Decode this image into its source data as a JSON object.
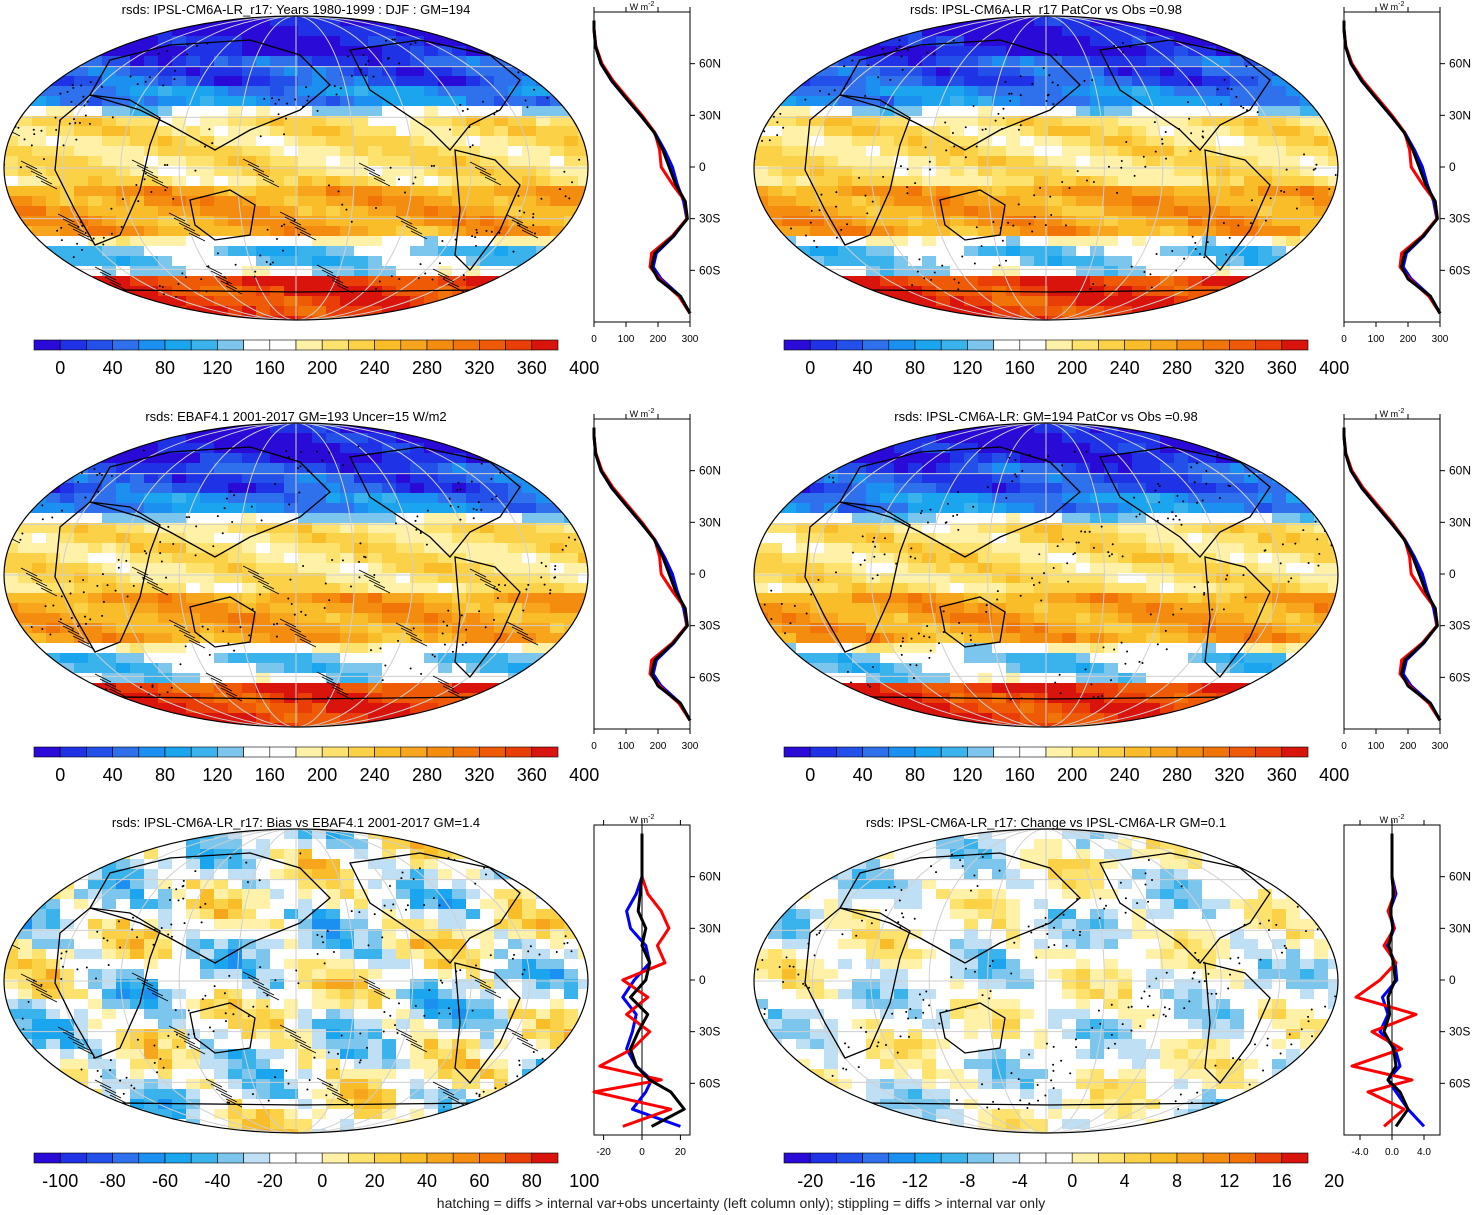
{
  "figure": {
    "footnote": "hatching = diffs > internal var+obs uncertainty (left column only); stippling = diffs > internal var only"
  },
  "colors": {
    "land_outline": "#000000",
    "grid": "#cfcfcf",
    "model_line": "#ff0000",
    "obs_line": "#0000ff",
    "ref_line": "#000000"
  },
  "panels": [
    {
      "id": "p1",
      "title": "rsds: IPSL-CM6A-LR_r17: Years 1980-1999 : DJF : GM=194",
      "field": "mean",
      "colorbar": {
        "ticks": [
          "0",
          "40",
          "80",
          "120",
          "160",
          "200",
          "240",
          "280",
          "320",
          "360",
          "400"
        ]
      },
      "profile": {
        "unit": "W m",
        "unit_sup": "-2",
        "xticks": [
          "0",
          "100",
          "200",
          "300"
        ],
        "xrange": [
          0,
          300
        ]
      }
    },
    {
      "id": "p2",
      "title": "rsds: IPSL-CM6A-LR_r17 PatCor vs Obs =0.98",
      "field": "mean",
      "colorbar": {
        "ticks": [
          "0",
          "40",
          "80",
          "120",
          "160",
          "200",
          "240",
          "280",
          "320",
          "360",
          "400"
        ]
      },
      "profile": {
        "unit": "W m",
        "unit_sup": "-2",
        "xticks": [
          "0",
          "100",
          "200",
          "300"
        ],
        "xrange": [
          0,
          300
        ]
      }
    },
    {
      "id": "p3",
      "title": "rsds: EBAF4.1 2001-2017 GM=193 Uncer=15 W/m2",
      "field": "mean",
      "colorbar": {
        "ticks": [
          "0",
          "40",
          "80",
          "120",
          "160",
          "200",
          "240",
          "280",
          "320",
          "360",
          "400"
        ]
      },
      "profile": {
        "unit": "W m",
        "unit_sup": "-2",
        "xticks": [
          "0",
          "100",
          "200",
          "300"
        ],
        "xrange": [
          0,
          300
        ]
      }
    },
    {
      "id": "p4",
      "title": "rsds: IPSL-CM6A-LR: GM=194 PatCor vs Obs =0.98",
      "field": "mean",
      "colorbar": {
        "ticks": [
          "0",
          "40",
          "80",
          "120",
          "160",
          "200",
          "240",
          "280",
          "320",
          "360",
          "400"
        ]
      },
      "profile": {
        "unit": "W m",
        "unit_sup": "-2",
        "xticks": [
          "0",
          "100",
          "200",
          "300"
        ],
        "xrange": [
          0,
          300
        ]
      }
    },
    {
      "id": "p5",
      "title": "rsds: IPSL-CM6A-LR_r17: Bias vs EBAF4.1 2001-2017 GM=1.4",
      "field": "bias",
      "colorbar": {
        "ticks": [
          "-100",
          "-80",
          "-60",
          "-40",
          "-20",
          "0",
          "20",
          "40",
          "60",
          "80",
          "100"
        ]
      },
      "profile": {
        "unit": "W m",
        "unit_sup": "-2",
        "xticks": [
          "-20",
          "0",
          "20"
        ],
        "xrange": [
          -25,
          25
        ]
      }
    },
    {
      "id": "p6",
      "title": "rsds: IPSL-CM6A-LR_r17: Change vs IPSL-CM6A-LR GM=0.1",
      "field": "change",
      "colorbar": {
        "ticks": [
          "-20",
          "-16",
          "-12",
          "-8",
          "-4",
          "0",
          "4",
          "8",
          "12",
          "16",
          "20"
        ]
      },
      "profile": {
        "unit": "W m",
        "unit_sup": "-2",
        "xticks": [
          "-4.0",
          "0.0",
          "4.0"
        ],
        "xrange": [
          -6,
          6
        ]
      }
    }
  ],
  "chart_data": {
    "type": "heatmap",
    "variable": "rsds",
    "lat_axis": {
      "ticks": [
        "60N",
        "30N",
        "0",
        "30S",
        "60S"
      ],
      "values": [
        60,
        30,
        0,
        -30,
        -60
      ],
      "range": [
        -90,
        90
      ]
    },
    "colorbar_mean": [
      "#2a0ad6",
      "#1f32e6",
      "#2450ea",
      "#2f70ec",
      "#1b90f0",
      "#1aa5ee",
      "#3ab3ec",
      "#7cc6ee",
      "#ffffff",
      "#ffffff",
      "#fff2a8",
      "#fde36e",
      "#fbd148",
      "#f9bd2a",
      "#f7a51c",
      "#f48c10",
      "#f17408",
      "#ee5a06",
      "#ea3e08",
      "#d8140c"
    ],
    "colorbar_diverging": [
      "#2a0ad6",
      "#1f32e6",
      "#2450ea",
      "#2f70ec",
      "#1b90f0",
      "#1aa5ee",
      "#3ab3ec",
      "#7cc6ee",
      "#bfe0f4",
      "#ffffff",
      "#ffffff",
      "#fff2a8",
      "#fde36e",
      "#fbd148",
      "#f9bd2a",
      "#f7a51c",
      "#f48c10",
      "#f17408",
      "#ea3e08",
      "#d8140c"
    ],
    "zonal_profiles_lat": [
      -85,
      -75,
      -65,
      -58,
      -50,
      -40,
      -30,
      -20,
      -10,
      0,
      10,
      20,
      30,
      40,
      50,
      60,
      70,
      80,
      85
    ],
    "zonal_profiles": {
      "mean_djf_vs_obs": {
        "model": [
          300,
          265,
          205,
          175,
          180,
          245,
          290,
          285,
          245,
          210,
          205,
          190,
          150,
          105,
          60,
          25,
          6,
          0,
          0
        ],
        "obs": [
          320,
          270,
          210,
          185,
          195,
          250,
          290,
          280,
          260,
          245,
          220,
          190,
          145,
          100,
          55,
          22,
          5,
          0,
          0
        ],
        "reference": [
          310,
          270,
          200,
          180,
          190,
          248,
          292,
          285,
          255,
          235,
          215,
          188,
          146,
          100,
          56,
          22,
          5,
          0,
          0
        ]
      },
      "bias": {
        "model": [
          -10,
          15,
          -25,
          10,
          -22,
          -5,
          4,
          -8,
          3,
          -10,
          12,
          8,
          14,
          10,
          3,
          0,
          0,
          0,
          0
        ],
        "obs": [
          20,
          -5,
          2,
          5,
          -3,
          -8,
          -5,
          -3,
          -10,
          -4,
          4,
          2,
          -6,
          -8,
          -3,
          0,
          0,
          0,
          0
        ],
        "reference": [
          5,
          22,
          15,
          4,
          -3,
          -6,
          -2,
          3,
          -6,
          2,
          4,
          0,
          2,
          -2,
          -1,
          0,
          0,
          0,
          0
        ]
      },
      "change": {
        "model": [
          -1,
          1.5,
          -3,
          2.5,
          -5,
          1.2,
          -2.5,
          3,
          -4.5,
          -1.5,
          0.5,
          -1,
          0.3,
          -0.5,
          0.3,
          0,
          0,
          0,
          0
        ],
        "obs": [
          4,
          2,
          0.5,
          -0.5,
          1,
          0.4,
          -1.5,
          -0.5,
          -1.2,
          0.6,
          0.4,
          -0.6,
          0.3,
          -0.3,
          0.5,
          0,
          0,
          0,
          0
        ],
        "reference": [
          0.5,
          2,
          1,
          -0.5,
          0.5,
          0.2,
          -1,
          -0.3,
          -0.5,
          0.4,
          0.2,
          -0.4,
          0.1,
          -0.2,
          0.2,
          0,
          0,
          0,
          0
        ]
      }
    }
  }
}
